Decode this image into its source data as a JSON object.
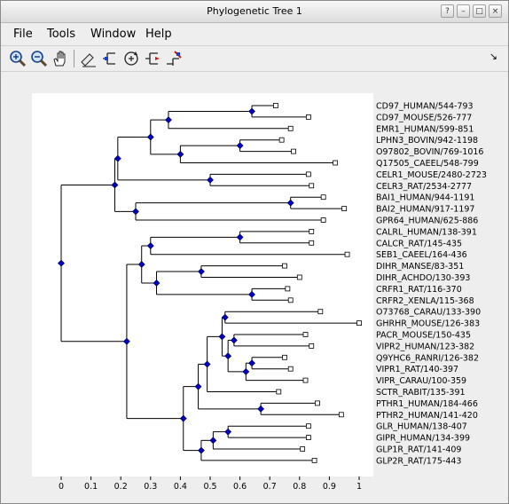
{
  "window": {
    "title": "Phylogenetic Tree 1",
    "controls": [
      "help-icon",
      "minimize-icon",
      "maximize-icon",
      "close-icon"
    ]
  },
  "menu": {
    "file": "File",
    "tools": "Tools",
    "window": "Window",
    "help": "Help"
  },
  "toolbar": {
    "buttons": [
      "zoom-in-icon",
      "zoom-out-icon",
      "pan-hand-icon",
      "label-leaves-icon",
      "collapse-branch-icon",
      "rotate-branch-icon",
      "swap-branch-icon",
      "prune-icon"
    ]
  },
  "colors": {
    "node": "#0000cc",
    "branch": "#000000",
    "leaf_marker": "#ffffff"
  },
  "chart_data": {
    "type": "dendrogram",
    "xlim": [
      -0.1,
      1.05
    ],
    "xticks": [
      "0",
      "0.1",
      "0.2",
      "0.3",
      "0.4",
      "0.5",
      "0.6",
      "0.7",
      "0.8",
      "0.9",
      "1"
    ],
    "leaves": [
      {
        "name": "CD97_HUMAN/544-793",
        "d": 0.72
      },
      {
        "name": "CD97_MOUSE/526-777",
        "d": 0.83
      },
      {
        "name": "EMR1_HUMAN/599-851",
        "d": 0.77
      },
      {
        "name": "LPHN3_BOVIN/942-1198",
        "d": 0.74
      },
      {
        "name": "O97802_BOVIN/769-1016",
        "d": 0.78
      },
      {
        "name": "Q17505_CAEEL/548-799",
        "d": 0.92
      },
      {
        "name": "CELR1_MOUSE/2480-2723",
        "d": 0.83
      },
      {
        "name": "CELR3_RAT/2534-2777",
        "d": 0.84
      },
      {
        "name": "BAI1_HUMAN/944-1191",
        "d": 0.88
      },
      {
        "name": "BAI2_HUMAN/917-1197",
        "d": 0.95
      },
      {
        "name": "GPR64_HUMAN/625-886",
        "d": 0.88
      },
      {
        "name": "CALRL_HUMAN/138-391",
        "d": 0.84
      },
      {
        "name": "CALCR_RAT/145-435",
        "d": 0.84
      },
      {
        "name": "SEB1_CAEEL/164-436",
        "d": 0.96
      },
      {
        "name": "DIHR_MANSE/83-351",
        "d": 0.75
      },
      {
        "name": "DIHR_ACHDO/130-393",
        "d": 0.8
      },
      {
        "name": "CRFR1_RAT/116-370",
        "d": 0.76
      },
      {
        "name": "CRFR2_XENLA/115-368",
        "d": 0.77
      },
      {
        "name": "O73768_CARAU/133-390",
        "d": 0.87
      },
      {
        "name": "GHRHR_MOUSE/126-383",
        "d": 1.0
      },
      {
        "name": "PACR_MOUSE/150-435",
        "d": 0.82
      },
      {
        "name": "VIPR2_HUMAN/123-382",
        "d": 0.84
      },
      {
        "name": "Q9YHC6_RANRI/126-382",
        "d": 0.75
      },
      {
        "name": "VIPR1_RAT/140-397",
        "d": 0.77
      },
      {
        "name": "VIPR_CARAU/100-359",
        "d": 0.82
      },
      {
        "name": "SCTR_RABIT/135-391",
        "d": 0.73
      },
      {
        "name": "PTHR1_HUMAN/184-466",
        "d": 0.86
      },
      {
        "name": "PTHR2_HUMAN/141-420",
        "d": 0.94
      },
      {
        "name": "GLR_HUMAN/138-407",
        "d": 0.83
      },
      {
        "name": "GIPR_HUMAN/134-399",
        "d": 0.83
      },
      {
        "name": "GLP1R_RAT/141-409",
        "d": 0.81
      },
      {
        "name": "GLP2R_RAT/175-443",
        "d": 0.85
      }
    ],
    "nodes": [
      {
        "id": "n1",
        "d": 0.64,
        "ch": [
          "L0",
          "L1"
        ]
      },
      {
        "id": "n2",
        "d": 0.36,
        "ch": [
          "n1",
          "L2"
        ]
      },
      {
        "id": "n3",
        "d": 0.6,
        "ch": [
          "L3",
          "L4"
        ]
      },
      {
        "id": "n4",
        "d": 0.4,
        "ch": [
          "n3",
          "L5"
        ]
      },
      {
        "id": "n5",
        "d": 0.3,
        "ch": [
          "n2",
          "n4"
        ]
      },
      {
        "id": "n6",
        "d": 0.5,
        "ch": [
          "L6",
          "L7"
        ]
      },
      {
        "id": "n7",
        "d": 0.19,
        "ch": [
          "n5",
          "n6"
        ]
      },
      {
        "id": "n8",
        "d": 0.77,
        "ch": [
          "L8",
          "L9"
        ]
      },
      {
        "id": "n9",
        "d": 0.25,
        "ch": [
          "n8",
          "L10"
        ]
      },
      {
        "id": "n10",
        "d": 0.18,
        "ch": [
          "n7",
          "n9"
        ]
      },
      {
        "id": "n11",
        "d": 0.6,
        "ch": [
          "L11",
          "L12"
        ]
      },
      {
        "id": "n12",
        "d": 0.3,
        "ch": [
          "n11",
          "L13"
        ]
      },
      {
        "id": "n13",
        "d": 0.47,
        "ch": [
          "L14",
          "L15"
        ]
      },
      {
        "id": "n14",
        "d": 0.64,
        "ch": [
          "L16",
          "L17"
        ]
      },
      {
        "id": "n15",
        "d": 0.32,
        "ch": [
          "n13",
          "n14"
        ]
      },
      {
        "id": "n16",
        "d": 0.27,
        "ch": [
          "n12",
          "n15"
        ]
      },
      {
        "id": "n17",
        "d": 0.55,
        "ch": [
          "L18",
          "L19"
        ]
      },
      {
        "id": "n18",
        "d": 0.58,
        "ch": [
          "L20",
          "L21"
        ]
      },
      {
        "id": "n19",
        "d": 0.64,
        "ch": [
          "L22",
          "L23"
        ]
      },
      {
        "id": "n20",
        "d": 0.62,
        "ch": [
          "n19",
          "L24"
        ]
      },
      {
        "id": "n21",
        "d": 0.56,
        "ch": [
          "n18",
          "n20"
        ]
      },
      {
        "id": "n22",
        "d": 0.54,
        "ch": [
          "n17",
          "n21"
        ]
      },
      {
        "id": "n23",
        "d": 0.49,
        "ch": [
          "n22",
          "L25"
        ]
      },
      {
        "id": "n24",
        "d": 0.67,
        "ch": [
          "L26",
          "L27"
        ]
      },
      {
        "id": "n25",
        "d": 0.46,
        "ch": [
          "n23",
          "n24"
        ]
      },
      {
        "id": "n26",
        "d": 0.56,
        "ch": [
          "L28",
          "L29"
        ]
      },
      {
        "id": "n27",
        "d": 0.51,
        "ch": [
          "n26",
          "L30"
        ]
      },
      {
        "id": "n28",
        "d": 0.47,
        "ch": [
          "n27",
          "L31"
        ]
      },
      {
        "id": "n29",
        "d": 0.41,
        "ch": [
          "n25",
          "n28"
        ]
      },
      {
        "id": "n30",
        "d": 0.22,
        "ch": [
          "n16",
          "n29"
        ]
      },
      {
        "id": "n31",
        "d": 0.0,
        "ch": [
          "n10",
          "n30"
        ]
      }
    ]
  }
}
